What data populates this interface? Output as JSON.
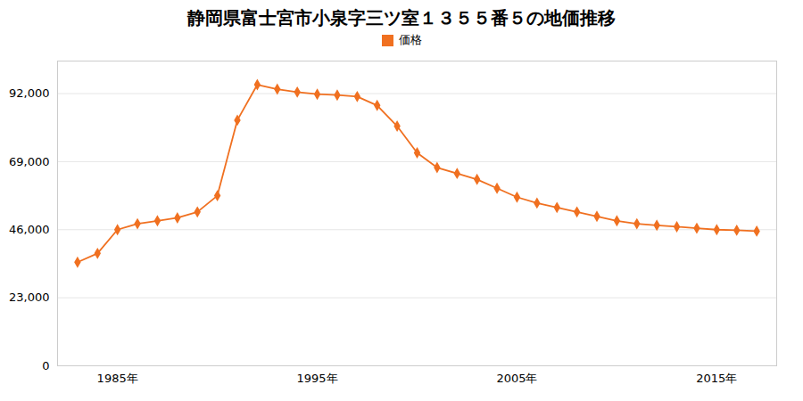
{
  "chart_data": {
    "type": "line",
    "title": "静岡県富士宮市小泉字三ツ室１３５５番５の地価推移",
    "x": [
      1983,
      1984,
      1985,
      1986,
      1987,
      1988,
      1989,
      1990,
      1991,
      1992,
      1993,
      1994,
      1995,
      1996,
      1997,
      1998,
      1999,
      2000,
      2001,
      2002,
      2003,
      2004,
      2005,
      2006,
      2007,
      2008,
      2009,
      2010,
      2011,
      2012,
      2013,
      2014,
      2015,
      2016,
      2017
    ],
    "series": [
      {
        "name": "価格",
        "color": "#f07020",
        "marker": "diamond",
        "values": [
          35000,
          38000,
          46000,
          48000,
          49000,
          50000,
          52000,
          57500,
          83000,
          95000,
          93500,
          92500,
          91800,
          91500,
          91000,
          88000,
          81000,
          72000,
          67000,
          65000,
          63000,
          60000,
          57000,
          55000,
          53500,
          52000,
          50500,
          49000,
          48000,
          47500,
          47000,
          46500,
          46000,
          45800,
          45500
        ]
      }
    ],
    "xlim": [
      1982,
      2018
    ],
    "xticks": [
      {
        "value": 1985,
        "label": "1985年"
      },
      {
        "value": 1995,
        "label": "1995年"
      },
      {
        "value": 2005,
        "label": "2005年"
      },
      {
        "value": 2015,
        "label": "2015年"
      }
    ],
    "ylim": [
      0,
      103000
    ],
    "yticks": [
      0,
      {
        "value": 23000,
        "label": "23,000"
      },
      {
        "value": 46000,
        "label": "46,000"
      },
      {
        "value": 69000,
        "label": "69,000"
      },
      {
        "value": 92000,
        "label": "92,000"
      }
    ],
    "grid": true,
    "legend": "top"
  }
}
